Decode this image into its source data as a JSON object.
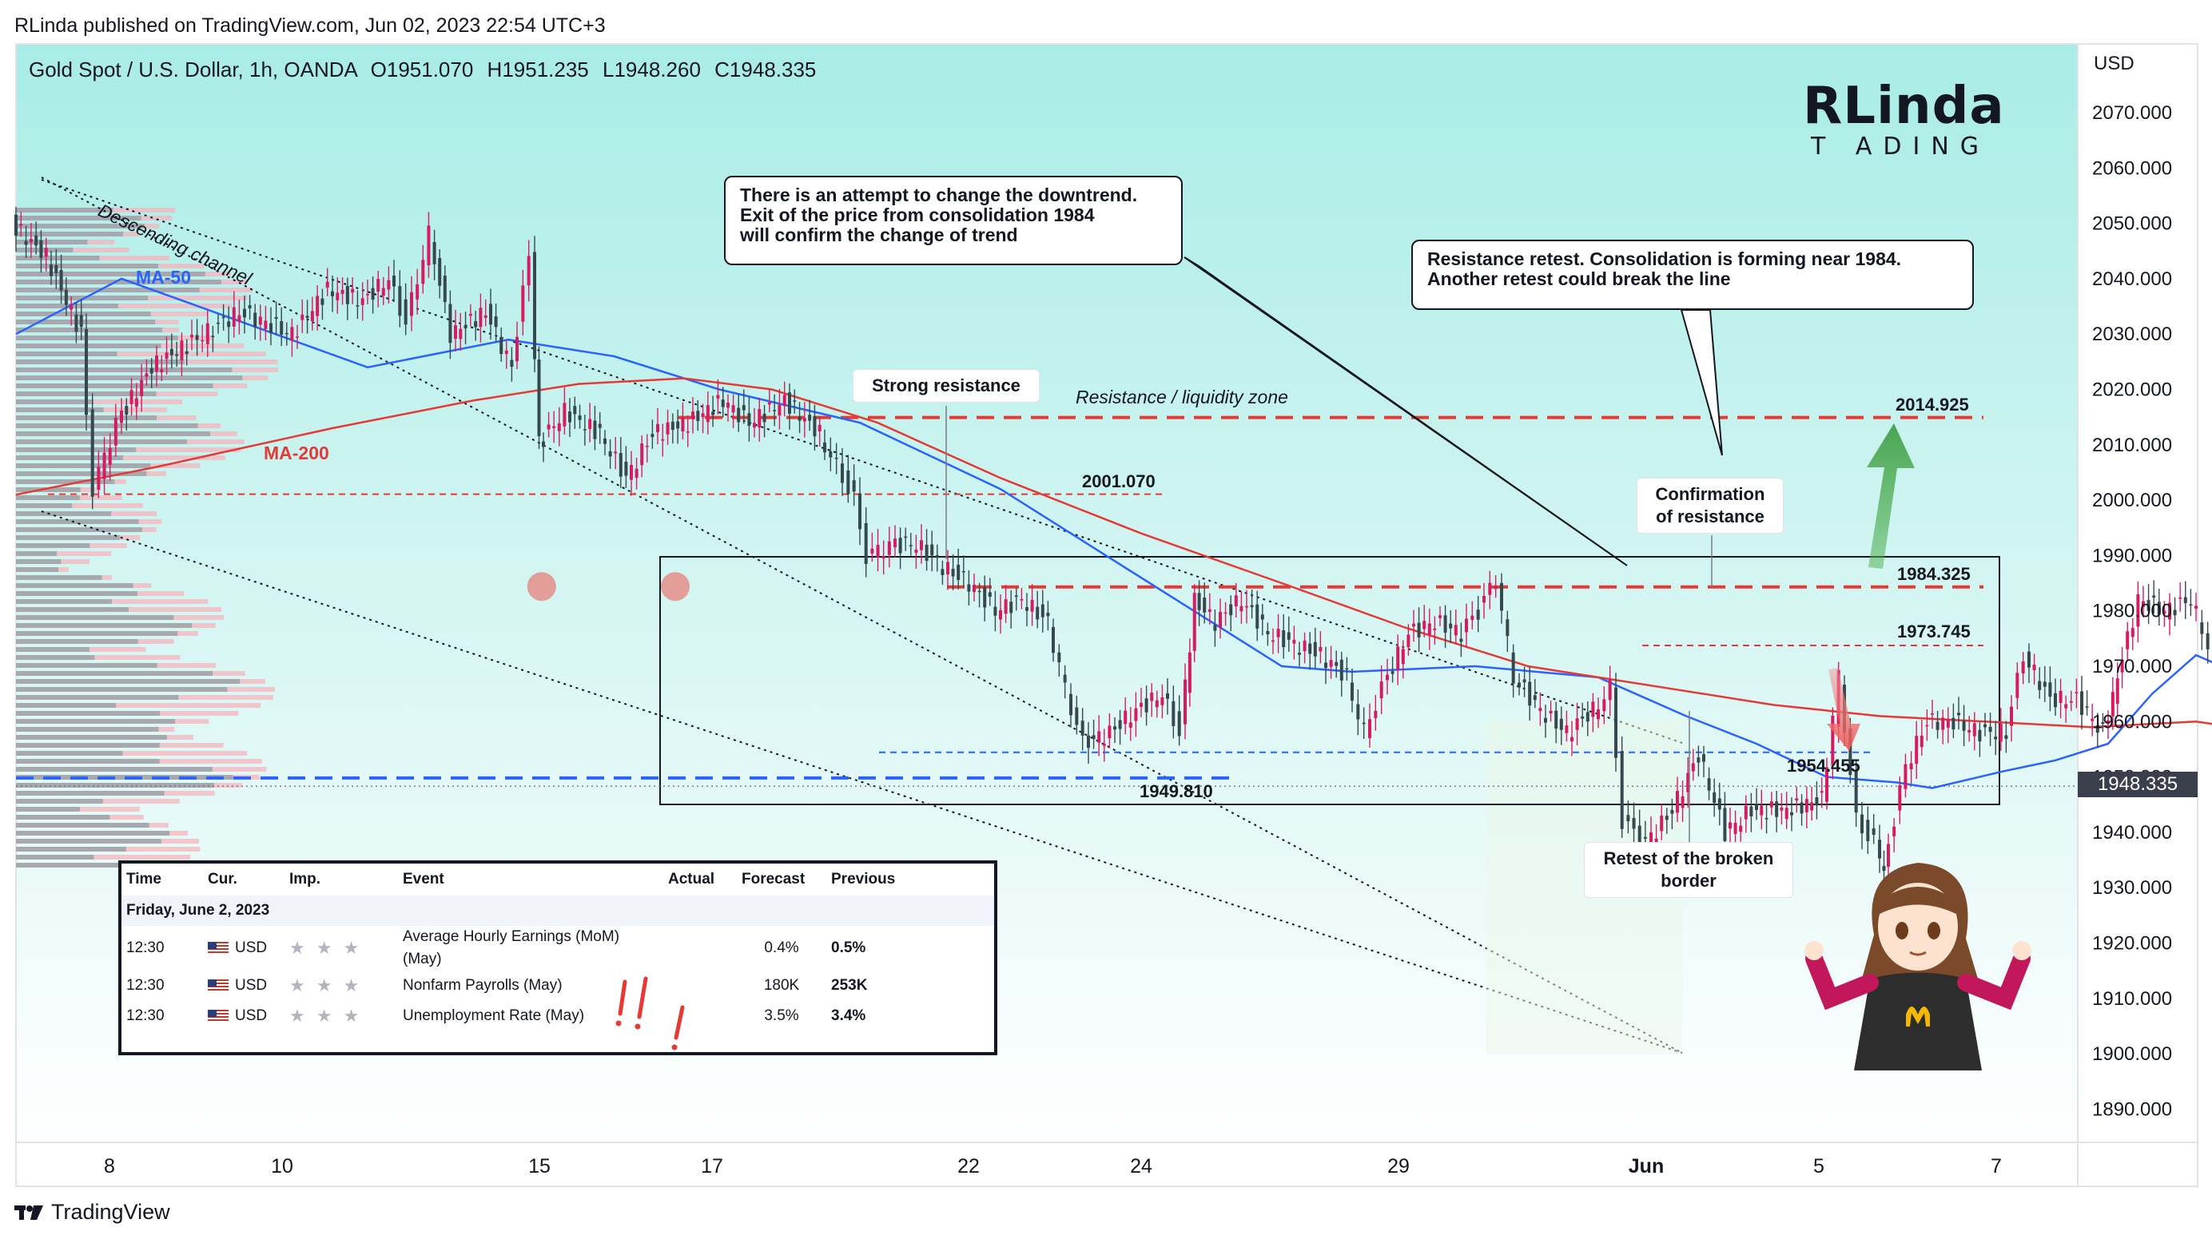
{
  "header": {
    "published": "RLinda published on TradingView.com, Jun 02, 2023 22:54 UTC+3",
    "symbol_line": "Gold Spot / U.S. Dollar, 1h, OANDA",
    "open": "O1951.070",
    "high": "H1951.235",
    "low": "L1948.260",
    "close": "C1948.335"
  },
  "footer": {
    "brand": "TradingView"
  },
  "logo": {
    "text_main": "RLinda",
    "text_sub": "T ADING"
  },
  "chart_data": {
    "type": "line",
    "currency_label": "USD",
    "y_ticks": [
      2070,
      2060,
      2050,
      2040,
      2030,
      2020,
      2010,
      2000,
      1990,
      1980,
      1970,
      1960,
      1950,
      1940,
      1930,
      1920,
      1910,
      1900,
      1890
    ],
    "y_tick_labels": [
      "2070.000",
      "2060.000",
      "2050.000",
      "2040.000",
      "2030.000",
      "2020.000",
      "2010.000",
      "2000.000",
      "1990.000",
      "1980.000",
      "1970.000",
      "1960.000",
      "1950.000",
      "1940.000",
      "1930.000",
      "1920.000",
      "1910.000",
      "1900.000",
      "1890.000"
    ],
    "ylim": [
      1882,
      2076
    ],
    "x_ticks": [
      "8",
      "10",
      "15",
      "17",
      "22",
      "24",
      "29",
      "Jun",
      "5",
      "7"
    ],
    "last_price": "1948.335",
    "levels": [
      {
        "value": 2014.925,
        "label": "2014.925",
        "color": "#e53935"
      },
      {
        "value": 2001.07,
        "label": "2001.070",
        "color": "#e53935"
      },
      {
        "value": 1984.325,
        "label": "1984.325",
        "color": "#e53935"
      },
      {
        "value": 1973.745,
        "label": "1973.745",
        "color": "#e53935"
      },
      {
        "value": 1954.455,
        "label": "1954.455",
        "color": "#2962ff"
      },
      {
        "value": 1949.81,
        "label": "1949.810",
        "color": "#2962ff"
      }
    ],
    "series": [
      {
        "name": "MA-50",
        "color": "#2962ff",
        "points": [
          [
            0,
            2030
          ],
          [
            60,
            2040
          ],
          [
            130,
            2032
          ],
          [
            200,
            2024
          ],
          [
            280,
            2029
          ],
          [
            340,
            2026
          ],
          [
            400,
            2020
          ],
          [
            480,
            2014
          ],
          [
            560,
            2002
          ],
          [
            620,
            1990
          ],
          [
            680,
            1978
          ],
          [
            720,
            1970
          ],
          [
            760,
            1969
          ],
          [
            830,
            1970
          ],
          [
            900,
            1968
          ],
          [
            950,
            1961
          ],
          [
            990,
            1956
          ],
          [
            1030,
            1950
          ],
          [
            1070,
            1949
          ],
          [
            1090,
            1948
          ],
          [
            1130,
            1951
          ],
          [
            1160,
            1953
          ],
          [
            1190,
            1956
          ],
          [
            1215,
            1965
          ],
          [
            1240,
            1972
          ],
          [
            1262,
            1969
          ]
        ]
      },
      {
        "name": "MA-200",
        "color": "#e53935",
        "points": [
          [
            0,
            2001
          ],
          [
            80,
            2006
          ],
          [
            180,
            2013
          ],
          [
            260,
            2018
          ],
          [
            320,
            2021
          ],
          [
            380,
            2022
          ],
          [
            430,
            2020
          ],
          [
            490,
            2014
          ],
          [
            560,
            2004
          ],
          [
            640,
            1994
          ],
          [
            720,
            1985
          ],
          [
            790,
            1977
          ],
          [
            860,
            1970
          ],
          [
            940,
            1966
          ],
          [
            1000,
            1963
          ],
          [
            1060,
            1961
          ],
          [
            1120,
            1960
          ],
          [
            1180,
            1959
          ],
          [
            1240,
            1960
          ],
          [
            1262,
            1959
          ]
        ]
      }
    ],
    "price_path": [
      [
        0,
        2050
      ],
      [
        20,
        2044
      ],
      [
        40,
        2030
      ],
      [
        47,
        2002
      ],
      [
        60,
        2014
      ],
      [
        80,
        2024
      ],
      [
        100,
        2028
      ],
      [
        130,
        2034
      ],
      [
        160,
        2030
      ],
      [
        180,
        2038
      ],
      [
        200,
        2036
      ],
      [
        215,
        2040
      ],
      [
        225,
        2032
      ],
      [
        238,
        2048
      ],
      [
        250,
        2030
      ],
      [
        270,
        2034
      ],
      [
        285,
        2024
      ],
      [
        295,
        2044
      ],
      [
        300,
        2010
      ],
      [
        315,
        2016
      ],
      [
        335,
        2012
      ],
      [
        350,
        2004
      ],
      [
        365,
        2012
      ],
      [
        385,
        2014
      ],
      [
        405,
        2018
      ],
      [
        420,
        2014
      ],
      [
        440,
        2018
      ],
      [
        460,
        2012
      ],
      [
        470,
        2006
      ],
      [
        480,
        2000
      ],
      [
        487,
        1990
      ],
      [
        500,
        1992
      ],
      [
        515,
        1992
      ],
      [
        530,
        1988
      ],
      [
        545,
        1985
      ],
      [
        560,
        1980
      ],
      [
        575,
        1982
      ],
      [
        590,
        1978
      ],
      [
        600,
        1966
      ],
      [
        610,
        1956
      ],
      [
        625,
        1958
      ],
      [
        640,
        1962
      ],
      [
        655,
        1965
      ],
      [
        665,
        1958
      ],
      [
        673,
        1982
      ],
      [
        685,
        1978
      ],
      [
        700,
        1982
      ],
      [
        715,
        1976
      ],
      [
        730,
        1974
      ],
      [
        745,
        1972
      ],
      [
        760,
        1968
      ],
      [
        770,
        1958
      ],
      [
        780,
        1966
      ],
      [
        795,
        1976
      ],
      [
        810,
        1978
      ],
      [
        825,
        1976
      ],
      [
        835,
        1980
      ],
      [
        845,
        1986
      ],
      [
        855,
        1968
      ],
      [
        870,
        1962
      ],
      [
        885,
        1958
      ],
      [
        900,
        1962
      ],
      [
        910,
        1966
      ],
      [
        917,
        1942
      ],
      [
        930,
        1938
      ],
      [
        945,
        1944
      ],
      [
        960,
        1954
      ],
      [
        975,
        1940
      ],
      [
        990,
        1944
      ],
      [
        1010,
        1944
      ],
      [
        1030,
        1946
      ],
      [
        1040,
        1968
      ],
      [
        1050,
        1942
      ],
      [
        1060,
        1938
      ],
      [
        1065,
        1933
      ],
      [
        1078,
        1952
      ],
      [
        1090,
        1960
      ],
      [
        1105,
        1960
      ],
      [
        1120,
        1958
      ],
      [
        1135,
        1958
      ],
      [
        1145,
        1972
      ],
      [
        1160,
        1964
      ],
      [
        1175,
        1964
      ],
      [
        1190,
        1958
      ],
      [
        1198,
        1968
      ],
      [
        1210,
        1982
      ],
      [
        1225,
        1980
      ],
      [
        1240,
        1982
      ],
      [
        1250,
        1974
      ],
      [
        1262,
        1974
      ],
      [
        1268,
        1962
      ],
      [
        1275,
        1960
      ],
      [
        1282,
        1949
      ]
    ],
    "forecast_path": [
      [
        1272,
        1970
      ],
      [
        1278,
        1990
      ],
      [
        1290,
        1982
      ],
      [
        1300,
        2013
      ]
    ]
  },
  "annotations": {
    "channel_label": "Descending channel",
    "ma50_label": "MA-50",
    "ma200_label": "MA-200",
    "liquidity_zone": "Resistance / liquidity zone",
    "strong_resistance": "Strong resistance",
    "callout_downtrend": [
      "There is an attempt to change the downtrend.",
      "Exit of the price from consolidation 1984",
      "will confirm the change of trend"
    ],
    "callout_retest": [
      "Resistance retest. Consolidation is forming near 1984.",
      "Another retest could break the line"
    ],
    "confirmation": [
      "Confirmation",
      "of resistance"
    ],
    "retest_border": [
      "Retest of the broken",
      "border"
    ]
  },
  "calendar": {
    "headers": [
      "Time",
      "Cur.",
      "Imp.",
      "Event",
      "Actual",
      "Forecast",
      "Previous"
    ],
    "date_row": "Friday, June 2, 2023",
    "rows": [
      {
        "time": "12:30",
        "cur": "USD",
        "event": "Average Hourly Earnings (MoM)",
        "event_sub": "(May)",
        "actual": "",
        "forecast": "0.4%",
        "previous": "0.5%"
      },
      {
        "time": "12:30",
        "cur": "USD",
        "event": "Nonfarm Payrolls (May)",
        "event_sub": "",
        "actual": "",
        "forecast": "180K",
        "previous": "253K"
      },
      {
        "time": "12:30",
        "cur": "USD",
        "event": "Unemployment Rate (May)",
        "event_sub": "",
        "actual": "",
        "forecast": "3.5%",
        "previous": "3.4%"
      }
    ],
    "stars_glyph": "★ ★ ★"
  }
}
